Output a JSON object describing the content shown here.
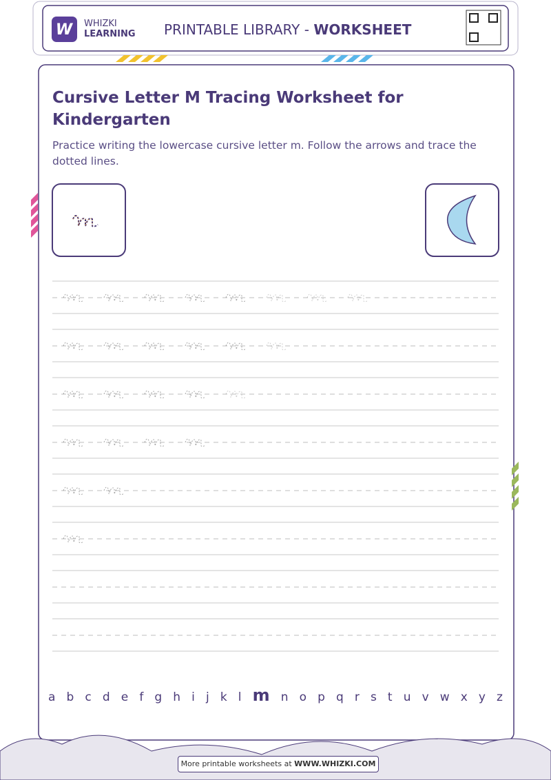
{
  "header": {
    "brand_top": "WHIZKI",
    "brand_bottom": "LEARNING",
    "library": "PRINTABLE LIBRARY - ",
    "library_bold": "WORKSHEET"
  },
  "title": "Cursive Letter M Tracing Worksheet for Kindergarten",
  "description": "Practice writing the lowercase cursive letter m. Follow the arrows and trace the dotted lines.",
  "alphabet": {
    "before": [
      "a",
      "b",
      "c",
      "d",
      "e",
      "f",
      "g",
      "h",
      "i",
      "j",
      "k",
      "l"
    ],
    "current": "m",
    "after": [
      "n",
      "o",
      "p",
      "q",
      "r",
      "s",
      "t",
      "u",
      "v",
      "w",
      "x",
      "y",
      "z"
    ]
  },
  "footer": {
    "text": "More printable worksheets at ",
    "link": "WWW.WHIZKI.COM"
  }
}
